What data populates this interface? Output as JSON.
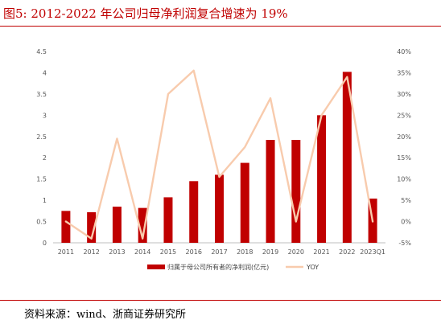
{
  "figure": {
    "title": "图5:   2012-2022 年公司归母净利润复合增速为 19%",
    "source": "资料来源：wind、浙商证券研究所"
  },
  "chart_data": {
    "type": "bar",
    "categories": [
      "2011",
      "2012",
      "2013",
      "2014",
      "2015",
      "2016",
      "2017",
      "2018",
      "2019",
      "2020",
      "2021",
      "2022",
      "2023Q1"
    ],
    "series": [
      {
        "name": "归属于母公司所有者的净利润(亿元)",
        "type": "bar",
        "axis": "left",
        "color": "#c00000",
        "values": [
          0.75,
          0.72,
          0.85,
          0.82,
          1.07,
          1.45,
          1.6,
          1.88,
          2.42,
          2.42,
          3.0,
          4.02,
          1.04
        ]
      },
      {
        "name": "YOY",
        "type": "line",
        "axis": "right",
        "color": "#f8cbad",
        "values": [
          0.0,
          -4.0,
          19.5,
          -4.0,
          30.0,
          35.5,
          10.5,
          17.5,
          29.0,
          0.0,
          25.0,
          34.0,
          0.0
        ]
      }
    ],
    "y_left": {
      "min": 0,
      "max": 4.5,
      "ticks": [
        "0",
        "0.5",
        "1",
        "1.5",
        "2",
        "2.5",
        "3",
        "3.5",
        "4",
        "4.5"
      ]
    },
    "y_right": {
      "min": -5,
      "max": 40,
      "ticks": [
        "-5%",
        "0%",
        "5%",
        "10%",
        "15%",
        "20%",
        "25%",
        "30%",
        "35%",
        "40%"
      ]
    },
    "grid": false,
    "legend_position": "bottom"
  }
}
